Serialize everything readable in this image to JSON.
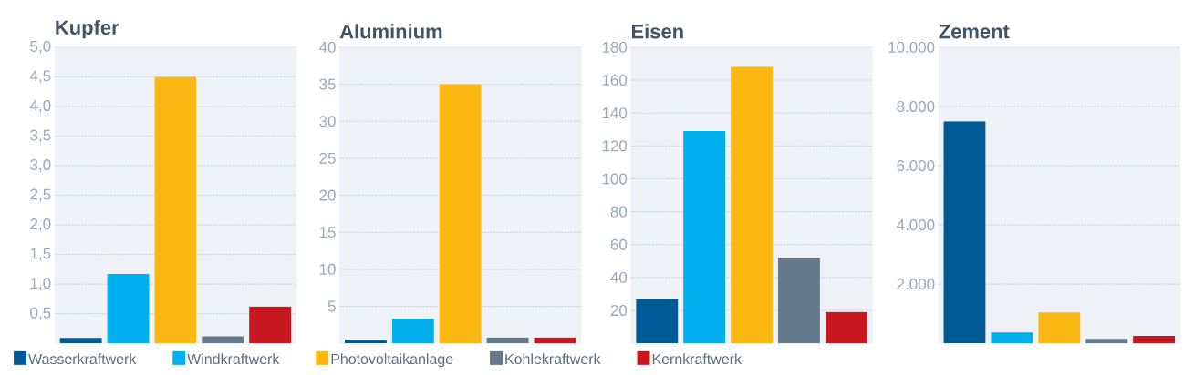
{
  "chart_data": [
    {
      "type": "bar",
      "title": "Kupfer",
      "categories": [
        null
      ],
      "ylim": [
        0,
        5
      ],
      "yticks": [
        {
          "value": 0.5,
          "label": "0,5"
        },
        {
          "value": 1,
          "label": "1,0"
        },
        {
          "value": 1.5,
          "label": "1,5"
        },
        {
          "value": 2,
          "label": "2,0"
        },
        {
          "value": 2.5,
          "label": "2,5"
        },
        {
          "value": 3,
          "label": "3,0"
        },
        {
          "value": 3.5,
          "label": "3,5"
        },
        {
          "value": 4,
          "label": "4,0"
        },
        {
          "value": 4.5,
          "label": "4,5"
        },
        {
          "value": 5,
          "label": "5,0"
        }
      ],
      "grid": "y",
      "tick_labels": "y",
      "legend": "bottom",
      "series": [
        {
          "name": "Wasserkraftwerk",
          "color": "#005a96",
          "values": [
            0.09
          ]
        },
        {
          "name": "Windkraftwerk",
          "color": "#00b0ee",
          "values": [
            1.17
          ]
        },
        {
          "name": "Photovoltaikanlage",
          "color": "#fbb713",
          "values": [
            4.5
          ]
        },
        {
          "name": "Kohlekraftwerk",
          "color": "#64798a",
          "values": [
            0.12
          ]
        },
        {
          "name": "Kernkraftwerk",
          "color": "#c8171e",
          "values": [
            0.62
          ]
        }
      ]
    },
    {
      "type": "bar",
      "title": "Aluminium",
      "categories": [
        null
      ],
      "ylim": [
        0,
        40
      ],
      "yticks": [
        5,
        10,
        15,
        20,
        25,
        30,
        35,
        40
      ],
      "grid": "y",
      "tick_labels": "y",
      "series": [
        {
          "color": "#005a96",
          "values": [
            0.5
          ]
        },
        {
          "color": "#00b0ee",
          "values": [
            3.3
          ]
        },
        {
          "color": "#fbb713",
          "values": [
            35
          ]
        },
        {
          "color": "#64798a",
          "values": [
            0.8
          ]
        },
        {
          "color": "#c8171e",
          "values": [
            0.8
          ]
        }
      ]
    },
    {
      "type": "bar",
      "title": "Eisen",
      "categories": [
        null
      ],
      "ylim": [
        0,
        180
      ],
      "yticks": [
        20,
        40,
        60,
        80,
        100,
        120,
        140,
        160,
        180
      ],
      "grid": "y",
      "tick_labels": "y",
      "series": [
        {
          "color": "#005a96",
          "values": [
            27
          ]
        },
        {
          "color": "#00b0ee",
          "values": [
            129
          ]
        },
        {
          "color": "#fbb713",
          "values": [
            168
          ]
        },
        {
          "color": "#64798a",
          "values": [
            52
          ]
        },
        {
          "color": "#c8171e",
          "values": [
            19
          ]
        }
      ]
    },
    {
      "type": "bar",
      "title": "Zement",
      "categories": [
        null
      ],
      "ylim": [
        0,
        10000
      ],
      "yticks": [
        {
          "value": 2000,
          "label": "2.000"
        },
        {
          "value": 4000,
          "label": "4.000"
        },
        {
          "value": 6000,
          "label": "6.000"
        },
        {
          "value": 8000,
          "label": "8.000"
        },
        {
          "value": 10000,
          "label": "10.000"
        }
      ],
      "grid": "y",
      "tick_labels": "y",
      "series": [
        {
          "color": "#005a96",
          "values": [
            7500
          ]
        },
        {
          "color": "#00b0ee",
          "values": [
            370
          ]
        },
        {
          "color": "#fbb713",
          "values": [
            1040
          ]
        },
        {
          "color": "#64798a",
          "values": [
            150
          ]
        },
        {
          "color": "#c8171e",
          "values": [
            250
          ]
        }
      ]
    }
  ]
}
